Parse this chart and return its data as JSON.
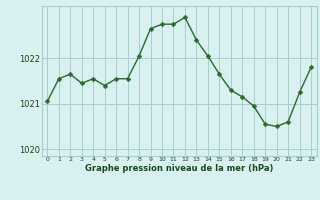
{
  "hours": [
    0,
    1,
    2,
    3,
    4,
    5,
    6,
    7,
    8,
    9,
    10,
    11,
    12,
    13,
    14,
    15,
    16,
    17,
    18,
    19,
    20,
    21,
    22,
    23
  ],
  "pressure": [
    1021.05,
    1021.55,
    1021.65,
    1021.45,
    1021.55,
    1021.4,
    1021.55,
    1021.55,
    1022.05,
    1022.65,
    1022.75,
    1022.75,
    1022.9,
    1022.4,
    1022.05,
    1021.65,
    1021.3,
    1021.15,
    1020.95,
    1020.55,
    1020.5,
    1020.6,
    1021.25,
    1021.8
  ],
  "line_color": "#2d6a2d",
  "marker": "D",
  "marker_size": 2.5,
  "bg_color": "#d8f0f0",
  "grid_color": "#a8cece",
  "axis_label_color": "#1a4a1a",
  "tick_label_color": "#1a4a1a",
  "xlabel": "Graphe pression niveau de la mer (hPa)",
  "ylim": [
    1019.85,
    1023.15
  ],
  "yticks": [
    1020,
    1021,
    1022
  ],
  "xticks": [
    0,
    1,
    2,
    3,
    4,
    5,
    6,
    7,
    8,
    9,
    10,
    11,
    12,
    13,
    14,
    15,
    16,
    17,
    18,
    19,
    20,
    21,
    22,
    23
  ],
  "xlim": [
    -0.5,
    23.5
  ]
}
